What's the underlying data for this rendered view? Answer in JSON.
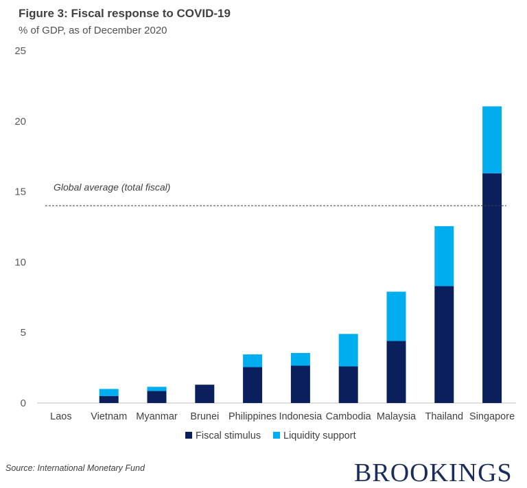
{
  "chart_data": {
    "type": "bar",
    "stacked": true,
    "title": "Figure 3: Fiscal response to COVID-19",
    "subtitle": "% of GDP, as of December 2020",
    "categories": [
      "Laos",
      "Vietnam",
      "Myanmar",
      "Brunei",
      "Philippines",
      "Indonesia",
      "Cambodia",
      "Malaysia",
      "Thailand",
      "Singapore"
    ],
    "series": [
      {
        "name": "Fiscal stimulus",
        "color": "#0a1f5c",
        "values": [
          0,
          0.5,
          0.85,
          1.3,
          2.55,
          2.65,
          2.6,
          4.4,
          8.3,
          16.3
        ]
      },
      {
        "name": "Liquidity support",
        "color": "#00aeef",
        "values": [
          0,
          0.5,
          0.3,
          0,
          0.9,
          0.9,
          2.3,
          3.5,
          4.25,
          4.75
        ]
      }
    ],
    "ylim": [
      0,
      25
    ],
    "yticks": [
      0,
      5,
      10,
      15,
      20,
      25
    ],
    "reference_line": {
      "value": 14,
      "label": "Global average (total fiscal)"
    },
    "legend_position": "bottom-center",
    "source": "Source: International Monetary Fund"
  },
  "brand": {
    "logo_text": "BROOKINGS"
  }
}
